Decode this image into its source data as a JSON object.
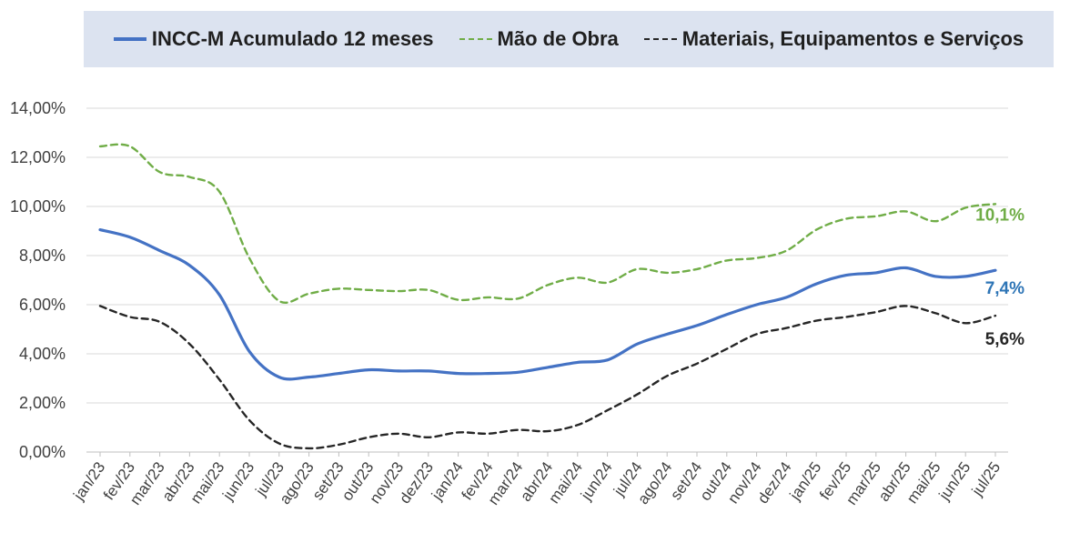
{
  "chart_data": {
    "type": "line",
    "categories": [
      "jan/23",
      "fev/23",
      "mar/23",
      "abr/23",
      "mai/23",
      "jun/23",
      "jul/23",
      "ago/23",
      "set/23",
      "out/23",
      "nov/23",
      "dez/23",
      "jan/24",
      "fev/24",
      "mar/24",
      "abr/24",
      "mai/24",
      "jun/24",
      "jul/24",
      "ago/24",
      "set/24",
      "out/24",
      "nov/24",
      "dez/24",
      "jan/25",
      "fev/25",
      "mar/25",
      "abr/25",
      "mai/25",
      "jun/25",
      "jul/25"
    ],
    "yticks": [
      "0,00%",
      "2,00%",
      "4,00%",
      "6,00%",
      "8,00%",
      "10,00%",
      "12,00%",
      "14,00%"
    ],
    "ylim": [
      0,
      14
    ],
    "grid": true,
    "legend_position": "top",
    "series": [
      {
        "name": "INCC-M Acumulado 12 meses",
        "color": "#4472c4",
        "dash": "solid",
        "end_label": "7,4%",
        "values": [
          9.05,
          8.75,
          8.2,
          7.6,
          6.4,
          4.1,
          3.05,
          3.05,
          3.2,
          3.35,
          3.3,
          3.3,
          3.2,
          3.2,
          3.25,
          3.45,
          3.65,
          3.75,
          4.4,
          4.8,
          5.15,
          5.6,
          6.0,
          6.3,
          6.85,
          7.2,
          7.3,
          7.5,
          7.15,
          7.15,
          7.4
        ]
      },
      {
        "name": "Mão de Obra",
        "color": "#70ad47",
        "dash": "dashed",
        "end_label": "10,1%",
        "values": [
          12.45,
          12.45,
          11.4,
          11.2,
          10.6,
          7.9,
          6.15,
          6.45,
          6.65,
          6.6,
          6.55,
          6.6,
          6.2,
          6.3,
          6.25,
          6.8,
          7.1,
          6.9,
          7.45,
          7.3,
          7.45,
          7.8,
          7.9,
          8.2,
          9.05,
          9.5,
          9.6,
          9.8,
          9.4,
          9.95,
          10.1
        ]
      },
      {
        "name": "Materiais, Equipamentos e Serviços",
        "color": "#262626",
        "dash": "dashed",
        "end_label": "5,6%",
        "values": [
          5.95,
          5.5,
          5.3,
          4.4,
          2.95,
          1.3,
          0.35,
          0.15,
          0.3,
          0.6,
          0.75,
          0.6,
          0.8,
          0.75,
          0.9,
          0.85,
          1.1,
          1.7,
          2.35,
          3.1,
          3.6,
          4.2,
          4.8,
          5.05,
          5.35,
          5.5,
          5.7,
          5.95,
          5.65,
          5.25,
          5.55
        ]
      }
    ]
  }
}
